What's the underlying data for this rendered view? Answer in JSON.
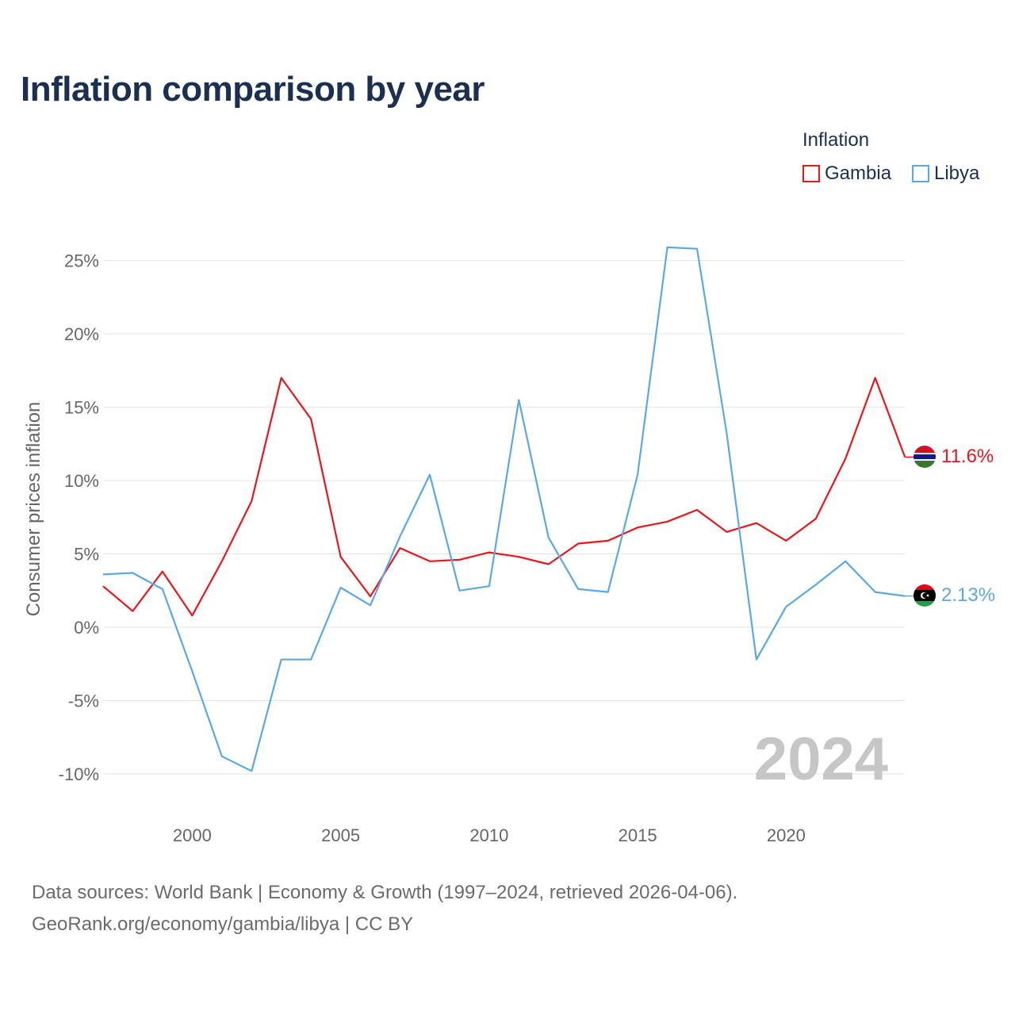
{
  "title": "Inflation comparison by year",
  "legend": {
    "title": "Inflation",
    "items": [
      {
        "label": "Gambia",
        "color": "#e8161b"
      },
      {
        "label": "Libya",
        "color": "#5ba8e6"
      }
    ]
  },
  "footer": {
    "line1": "Data sources: World Bank | Economy & Growth (1997–2024, retrieved 2026-04-06).",
    "line2": "GeoRank.org/economy/gambia/libya | CC BY"
  },
  "chart_data": {
    "type": "line",
    "title": "Inflation comparison by year",
    "xlabel": "",
    "ylabel": "Consumer prices inflation",
    "xlim": [
      1997,
      2024
    ],
    "ylim": [
      -11,
      27
    ],
    "y_ticks": [
      25,
      20,
      15,
      10,
      5,
      0,
      -5,
      -10
    ],
    "y_tick_labels": [
      "25%",
      "20%",
      "15%",
      "10%",
      "5%",
      "0%",
      "-5%",
      "-10%"
    ],
    "x_ticks": [
      2000,
      2005,
      2010,
      2015,
      2020
    ],
    "x_tick_labels": [
      "2000",
      "2005",
      "2010",
      "2015",
      "2020"
    ],
    "grid": true,
    "watermark": "2024",
    "x": [
      1997,
      1998,
      1999,
      2000,
      2001,
      2002,
      2003,
      2004,
      2005,
      2006,
      2007,
      2008,
      2009,
      2010,
      2011,
      2012,
      2013,
      2014,
      2015,
      2016,
      2017,
      2018,
      2019,
      2020,
      2021,
      2022,
      2023,
      2024
    ],
    "series": [
      {
        "name": "Gambia",
        "color": "#e8161b",
        "end_label": "11.6%",
        "values": [
          2.8,
          1.1,
          3.8,
          0.8,
          4.5,
          8.6,
          17.0,
          14.2,
          4.8,
          2.1,
          5.4,
          4.5,
          4.6,
          5.1,
          4.8,
          4.3,
          5.7,
          5.9,
          6.8,
          7.2,
          8.0,
          6.5,
          7.1,
          5.9,
          7.4,
          11.5,
          17.0,
          11.6
        ]
      },
      {
        "name": "Libya",
        "color": "#5ba8e6",
        "end_label": "2.13%",
        "values": [
          3.6,
          3.7,
          2.6,
          -3.0,
          -8.8,
          -9.8,
          -2.2,
          -2.2,
          2.7,
          1.5,
          6.2,
          10.4,
          2.5,
          2.8,
          15.5,
          6.1,
          2.6,
          2.4,
          10.4,
          25.9,
          25.8,
          13.2,
          -2.2,
          1.4,
          2.9,
          4.5,
          2.4,
          2.13
        ]
      }
    ]
  }
}
